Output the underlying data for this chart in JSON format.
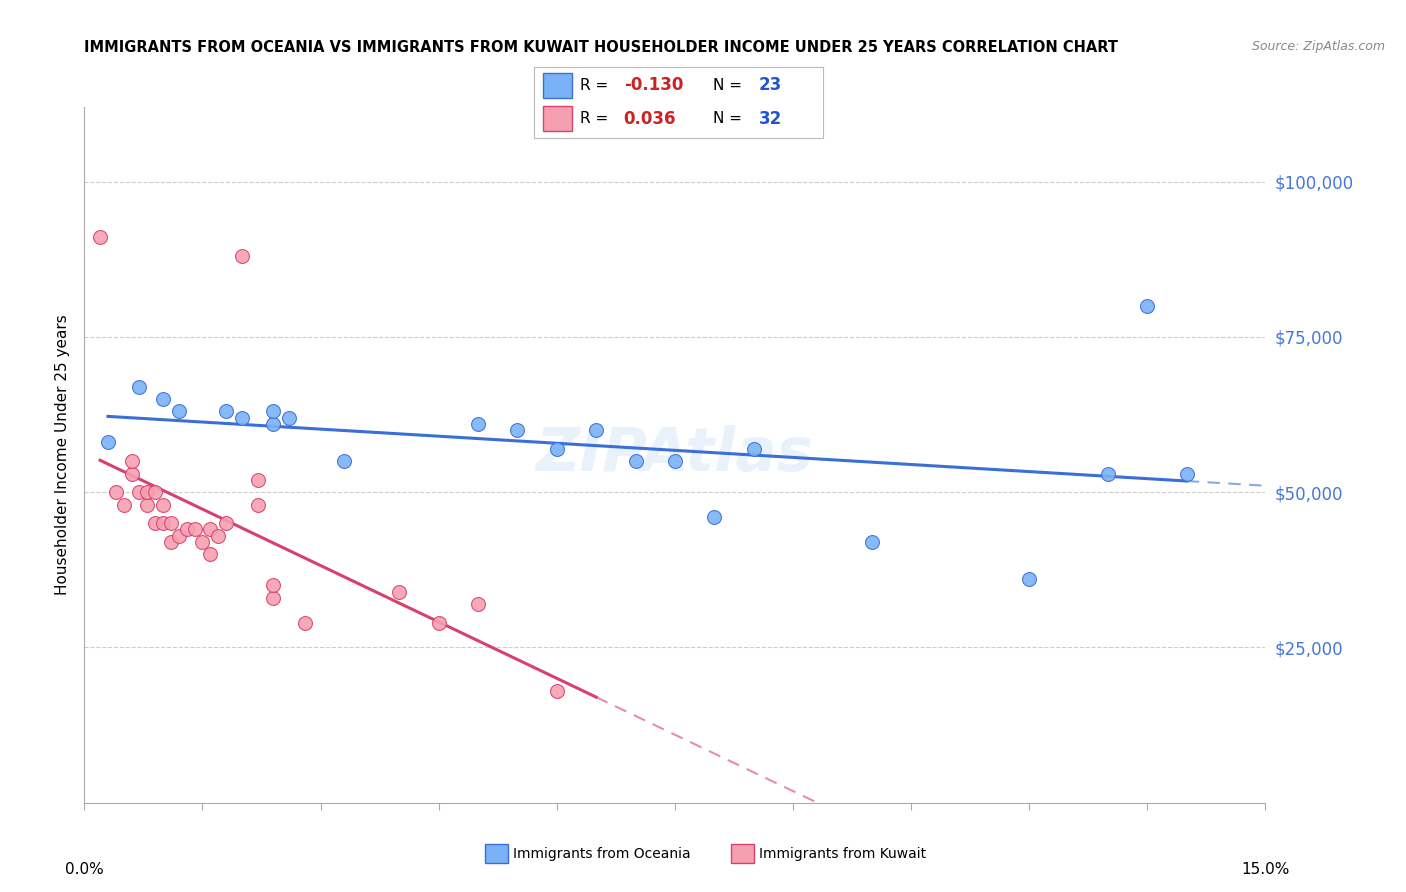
{
  "title": "IMMIGRANTS FROM OCEANIA VS IMMIGRANTS FROM KUWAIT HOUSEHOLDER INCOME UNDER 25 YEARS CORRELATION CHART",
  "source": "Source: ZipAtlas.com",
  "ylabel": "Householder Income Under 25 years",
  "y_tick_labels": [
    "$25,000",
    "$50,000",
    "$75,000",
    "$100,000"
  ],
  "y_tick_values": [
    25000,
    50000,
    75000,
    100000
  ],
  "xlim": [
    0.0,
    0.15
  ],
  "ylim": [
    0,
    112000
  ],
  "legend1_r": "-0.130",
  "legend1_n": "23",
  "legend2_r": "0.036",
  "legend2_n": "32",
  "oceania_color": "#7ab3f5",
  "kuwait_color": "#f5a0b0",
  "line_oceania_color": "#3a6fd8",
  "line_kuwait_color": "#d84070",
  "oceania_x": [
    0.003,
    0.007,
    0.01,
    0.012,
    0.018,
    0.02,
    0.024,
    0.024,
    0.026,
    0.033,
    0.05,
    0.055,
    0.06,
    0.065,
    0.07,
    0.075,
    0.08,
    0.085,
    0.1,
    0.12,
    0.13,
    0.14,
    0.135
  ],
  "oceania_y": [
    58000,
    67000,
    65000,
    63000,
    63000,
    62000,
    61000,
    63000,
    62000,
    55000,
    61000,
    60000,
    57000,
    60000,
    55000,
    55000,
    46000,
    57000,
    42000,
    36000,
    53000,
    53000,
    80000
  ],
  "kuwait_x": [
    0.002,
    0.004,
    0.005,
    0.006,
    0.006,
    0.007,
    0.008,
    0.008,
    0.009,
    0.009,
    0.01,
    0.01,
    0.011,
    0.011,
    0.012,
    0.013,
    0.014,
    0.015,
    0.016,
    0.016,
    0.017,
    0.018,
    0.02,
    0.022,
    0.022,
    0.024,
    0.024,
    0.028,
    0.04,
    0.045,
    0.05,
    0.06
  ],
  "kuwait_y": [
    91000,
    50000,
    48000,
    53000,
    55000,
    50000,
    48000,
    50000,
    45000,
    50000,
    45000,
    48000,
    42000,
    45000,
    43000,
    44000,
    44000,
    42000,
    40000,
    44000,
    43000,
    45000,
    88000,
    52000,
    48000,
    33000,
    35000,
    29000,
    34000,
    29000,
    32000,
    18000
  ],
  "grid_color": "#cccccc",
  "tick_color": "#aaaaaa",
  "y_label_color": "#4477dd",
  "spine_color": "#aaaaaa"
}
